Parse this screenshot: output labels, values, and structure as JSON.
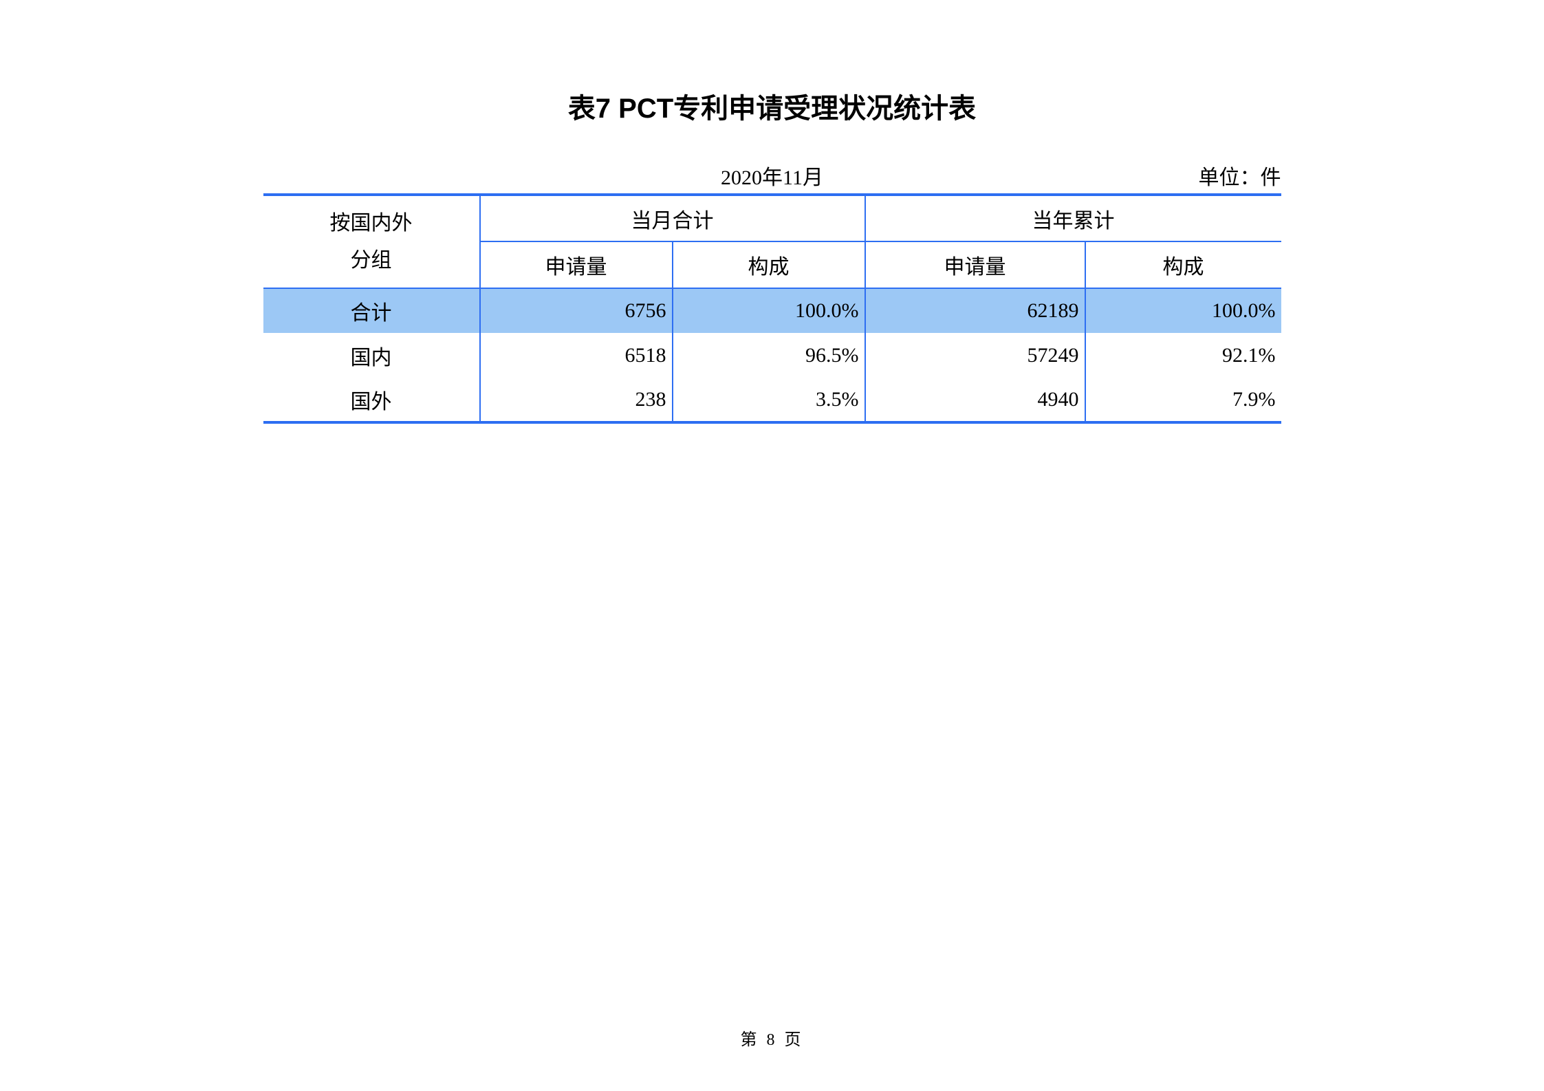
{
  "title": "表7  PCT专利申请受理状况统计表",
  "date": "2020年11月",
  "unit": "单位：件",
  "table": {
    "type": "table",
    "border_color": "#2d6ef2",
    "highlight_color": "#9cc8f5",
    "background_color": "#ffffff",
    "text_color": "#000000",
    "header_row1": {
      "rowhead_line1": "按国内外",
      "rowhead_line2": "分组",
      "group1": "当月合计",
      "group2": "当年累计"
    },
    "header_row2": {
      "c1": "申请量",
      "c2": "构成",
      "c3": "申请量",
      "c4": "构成"
    },
    "rows": [
      {
        "label": "合计",
        "month_apps": "6756",
        "month_pct": "100.0%",
        "year_apps": "62189",
        "year_pct": "100.0%",
        "highlight": true
      },
      {
        "label": "国内",
        "month_apps": "6518",
        "month_pct": "96.5%",
        "year_apps": "57249",
        "year_pct": "92.1%",
        "highlight": false
      },
      {
        "label": "国外",
        "month_apps": "238",
        "month_pct": "3.5%",
        "year_apps": "4940",
        "year_pct": "7.9%",
        "highlight": false
      }
    ]
  },
  "footer": "第 8 页"
}
